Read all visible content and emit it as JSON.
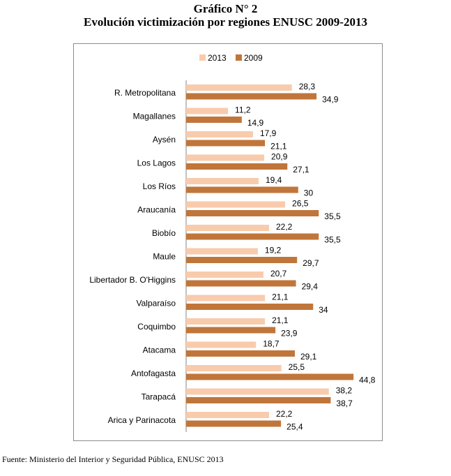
{
  "chart_data": {
    "type": "bar",
    "orientation": "horizontal",
    "title": "Gráfico N° 2",
    "subtitle": "Evolución victimización por regiones ENUSC 2009-2013",
    "categories": [
      "R. Metropolitana",
      "Magallanes",
      "Aysén",
      "Los Lagos",
      "Los Ríos",
      "Araucanía",
      "Biobío",
      "Maule",
      "Libertador B. O'Higgins",
      "Valparaíso",
      "Coquimbo",
      "Atacama",
      "Antofagasta",
      "Tarapacá",
      "Arica y Parinacota"
    ],
    "series": [
      {
        "name": "2013",
        "color": "#f8cbad",
        "values": [
          28.3,
          11.2,
          17.9,
          20.9,
          19.4,
          26.5,
          22.2,
          19.2,
          20.7,
          21.1,
          21.1,
          18.7,
          25.5,
          38.2,
          22.2
        ],
        "labels": [
          "28,3",
          "11,2",
          "17,9",
          "20,9",
          "19,4",
          "26,5",
          "22,2",
          "19,2",
          "20,7",
          "21,1",
          "21,1",
          "18,7",
          "25,5",
          "38,2",
          "22,2"
        ]
      },
      {
        "name": "2009",
        "color": "#c0763a",
        "values": [
          34.9,
          14.9,
          21.1,
          27.1,
          30,
          35.5,
          35.5,
          29.7,
          29.4,
          34,
          23.9,
          29.1,
          44.8,
          38.7,
          25.4
        ],
        "labels": [
          "34,9",
          "14,9",
          "21,1",
          "27,1",
          "30",
          "35,5",
          "35,5",
          "29,7",
          "29,4",
          "34",
          "23,9",
          "29,1",
          "44,8",
          "38,7",
          "25,4"
        ]
      }
    ],
    "xlim": [
      0,
      52
    ],
    "grid": false,
    "legend": "top-center",
    "source": "Fuente: Ministerio del Interior y Seguridad Pública, ENUSC 2013"
  }
}
